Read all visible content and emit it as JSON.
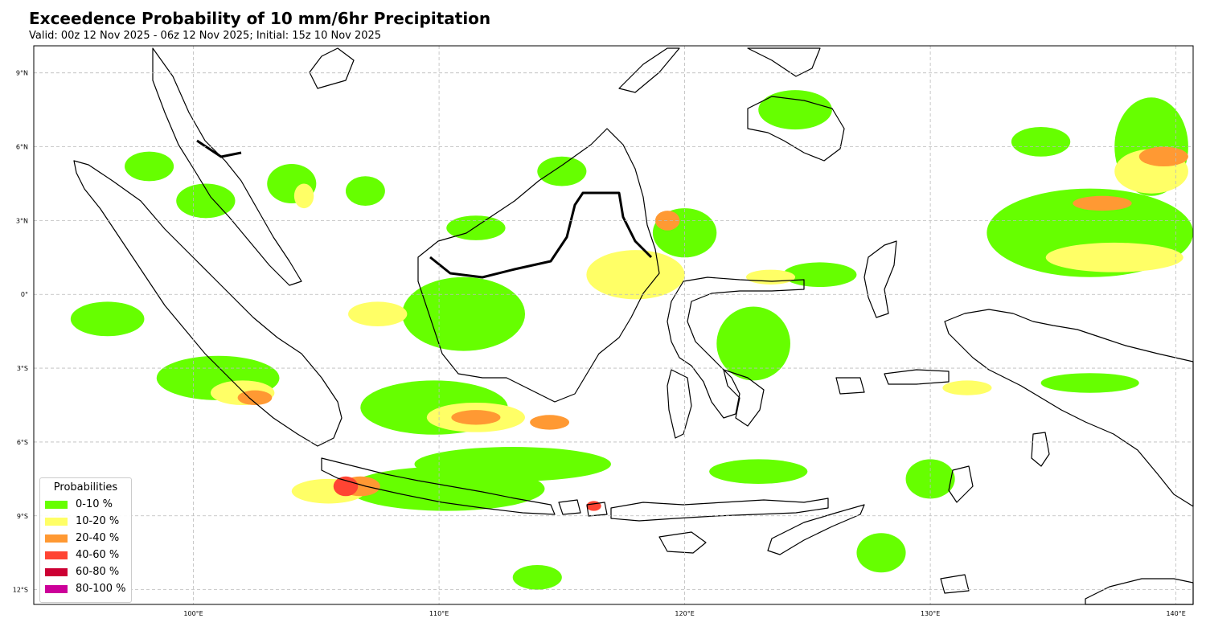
{
  "title": "Exceedence Probability of 10 mm/6hr Precipitation",
  "subtitle": "Valid: 00z 12 Nov 2025 - 06z 12 Nov 2025; Initial: 15z 10 Nov 2025",
  "map": {
    "lon_range": [
      93.5,
      140.7
    ],
    "lat_range": [
      -12.6,
      10.1
    ],
    "gridlines": true,
    "lon_ticks": [
      {
        "value": 100,
        "label": "100°E"
      },
      {
        "value": 110,
        "label": "110°E"
      },
      {
        "value": 120,
        "label": "120°E"
      },
      {
        "value": 130,
        "label": "130°E"
      },
      {
        "value": 140,
        "label": "140°E"
      }
    ],
    "lat_ticks": [
      {
        "value": 9,
        "label": "9°N"
      },
      {
        "value": 6,
        "label": "6°N"
      },
      {
        "value": 3,
        "label": "3°N"
      },
      {
        "value": 0,
        "label": "0°"
      },
      {
        "value": -3,
        "label": "3°S"
      },
      {
        "value": -6,
        "label": "6°S"
      },
      {
        "value": -9,
        "label": "9°S"
      },
      {
        "value": -12,
        "label": "12°S"
      }
    ]
  },
  "legend": {
    "title": "Probabilities",
    "placement": "bottom-left",
    "items": [
      {
        "label": "0-10 %",
        "color": "#66ff00"
      },
      {
        "label": "10-20 %",
        "color": "#ffff66"
      },
      {
        "label": "20-40 %",
        "color": "#ff9933"
      },
      {
        "label": "40-60 %",
        "color": "#ff4433"
      },
      {
        "label": "60-80 %",
        "color": "#cc0033"
      },
      {
        "label": "80-100 %",
        "color": "#cc0099"
      }
    ]
  },
  "precip_areas": [
    {
      "lon": 98.2,
      "lat": 5.2,
      "rlon": 1.0,
      "rlat": 0.6,
      "cat": 0
    },
    {
      "lon": 100.5,
      "lat": 3.8,
      "rlon": 1.2,
      "rlat": 0.7,
      "cat": 0
    },
    {
      "lon": 104.0,
      "lat": 4.5,
      "rlon": 1.0,
      "rlat": 0.8,
      "cat": 0
    },
    {
      "lon": 107.0,
      "lat": 4.2,
      "rlon": 0.8,
      "rlat": 0.6,
      "cat": 0
    },
    {
      "lon": 111.5,
      "lat": 2.7,
      "rlon": 1.2,
      "rlat": 0.5,
      "cat": 0
    },
    {
      "lon": 115.0,
      "lat": 5.0,
      "rlon": 1.0,
      "rlat": 0.6,
      "cat": 0
    },
    {
      "lon": 120.0,
      "lat": 2.5,
      "rlon": 1.3,
      "rlat": 1.0,
      "cat": 0
    },
    {
      "lon": 124.5,
      "lat": 7.5,
      "rlon": 1.5,
      "rlat": 0.8,
      "cat": 0
    },
    {
      "lon": 96.5,
      "lat": -1.0,
      "rlon": 1.5,
      "rlat": 0.7,
      "cat": 0
    },
    {
      "lon": 101.0,
      "lat": -3.4,
      "rlon": 2.5,
      "rlat": 0.9,
      "cat": 0
    },
    {
      "lon": 109.8,
      "lat": -4.6,
      "rlon": 3.0,
      "rlat": 1.1,
      "cat": 0
    },
    {
      "lon": 113.0,
      "lat": -6.9,
      "rlon": 4.0,
      "rlat": 0.7,
      "cat": 0
    },
    {
      "lon": 110.3,
      "lat": -7.9,
      "rlon": 4.0,
      "rlat": 0.9,
      "cat": 0
    },
    {
      "lon": 111.0,
      "lat": -0.8,
      "rlon": 2.5,
      "rlat": 1.5,
      "cat": 0
    },
    {
      "lon": 122.8,
      "lat": -2.0,
      "rlon": 1.5,
      "rlat": 1.5,
      "cat": 0
    },
    {
      "lon": 125.5,
      "lat": 0.8,
      "rlon": 1.5,
      "rlat": 0.5,
      "cat": 0
    },
    {
      "lon": 136.5,
      "lat": 2.5,
      "rlon": 4.2,
      "rlat": 1.8,
      "cat": 0
    },
    {
      "lon": 139.0,
      "lat": 6.0,
      "rlon": 1.5,
      "rlat": 2.0,
      "cat": 0
    },
    {
      "lon": 134.5,
      "lat": 6.2,
      "rlon": 1.2,
      "rlat": 0.6,
      "cat": 0
    },
    {
      "lon": 130.0,
      "lat": -7.5,
      "rlon": 1.0,
      "rlat": 0.8,
      "cat": 0
    },
    {
      "lon": 123.0,
      "lat": -7.2,
      "rlon": 2.0,
      "rlat": 0.5,
      "cat": 0
    },
    {
      "lon": 128.0,
      "lat": -10.5,
      "rlon": 1.0,
      "rlat": 0.8,
      "cat": 0
    },
    {
      "lon": 114.0,
      "lat": -11.5,
      "rlon": 1.0,
      "rlat": 0.5,
      "cat": 0
    },
    {
      "lon": 136.5,
      "lat": -3.6,
      "rlon": 2.0,
      "rlat": 0.4,
      "cat": 0
    },
    {
      "lon": 118.0,
      "lat": 0.8,
      "rlon": 2.0,
      "rlat": 1.0,
      "cat": 1
    },
    {
      "lon": 137.5,
      "lat": 1.5,
      "rlon": 2.8,
      "rlat": 0.6,
      "cat": 1
    },
    {
      "lon": 139.0,
      "lat": 5.0,
      "rlon": 1.5,
      "rlat": 0.9,
      "cat": 1
    },
    {
      "lon": 105.5,
      "lat": -8.0,
      "rlon": 1.5,
      "rlat": 0.5,
      "cat": 1
    },
    {
      "lon": 111.5,
      "lat": -5.0,
      "rlon": 2.0,
      "rlat": 0.6,
      "cat": 1
    },
    {
      "lon": 102.0,
      "lat": -4.0,
      "rlon": 1.3,
      "rlat": 0.5,
      "cat": 1
    },
    {
      "lon": 107.5,
      "lat": -0.8,
      "rlon": 1.2,
      "rlat": 0.5,
      "cat": 1
    },
    {
      "lon": 131.5,
      "lat": -3.8,
      "rlon": 1.0,
      "rlat": 0.3,
      "cat": 1
    },
    {
      "lon": 123.5,
      "lat": 0.7,
      "rlon": 1.0,
      "rlat": 0.3,
      "cat": 1
    },
    {
      "lon": 104.5,
      "lat": 4.0,
      "rlon": 0.4,
      "rlat": 0.5,
      "cat": 1
    },
    {
      "lon": 102.5,
      "lat": -4.2,
      "rlon": 0.7,
      "rlat": 0.3,
      "cat": 2
    },
    {
      "lon": 111.5,
      "lat": -5.0,
      "rlon": 1.0,
      "rlat": 0.3,
      "cat": 2
    },
    {
      "lon": 114.5,
      "lat": -5.2,
      "rlon": 0.8,
      "rlat": 0.3,
      "cat": 2
    },
    {
      "lon": 106.8,
      "lat": -7.8,
      "rlon": 0.8,
      "rlat": 0.4,
      "cat": 2
    },
    {
      "lon": 137.0,
      "lat": 3.7,
      "rlon": 1.2,
      "rlat": 0.3,
      "cat": 2
    },
    {
      "lon": 139.5,
      "lat": 5.6,
      "rlon": 1.0,
      "rlat": 0.4,
      "cat": 2
    },
    {
      "lon": 119.3,
      "lat": 3.0,
      "rlon": 0.5,
      "rlat": 0.4,
      "cat": 2
    },
    {
      "lon": 106.2,
      "lat": -7.8,
      "rlon": 0.5,
      "rlat": 0.4,
      "cat": 3
    },
    {
      "lon": 116.3,
      "lat": -8.6,
      "rlon": 0.3,
      "rlat": 0.2,
      "cat": 3
    }
  ]
}
